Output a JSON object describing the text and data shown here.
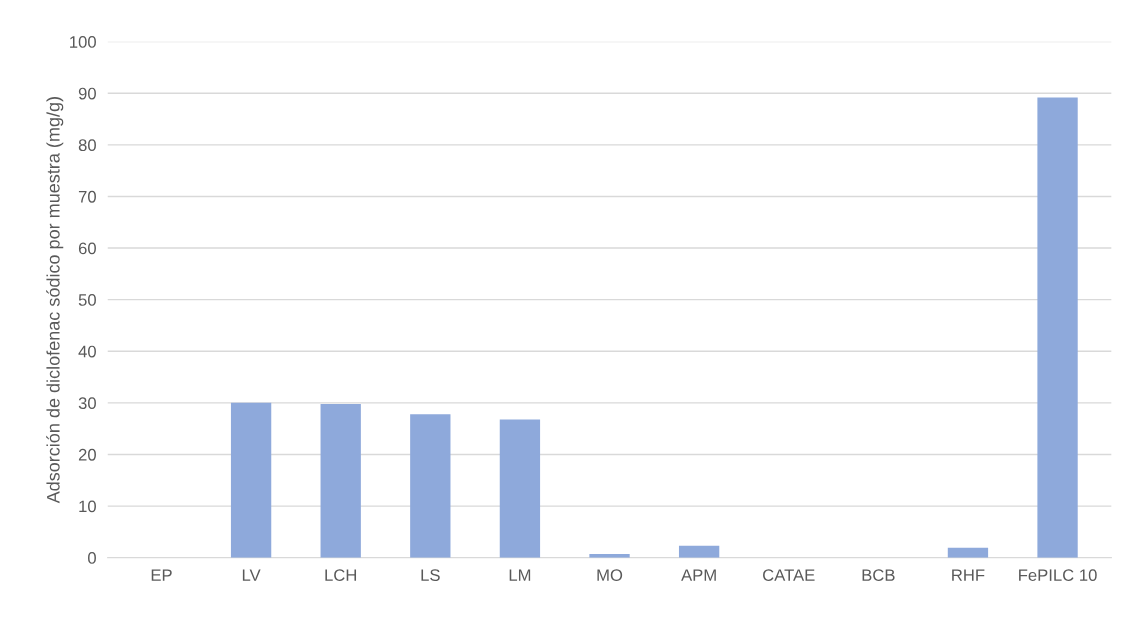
{
  "chart_data": {
    "type": "bar",
    "ylabel": "Adsorción de diclofenac sódico por muestra (mg/g)",
    "categories": [
      "EP",
      "LV",
      "LCH",
      "LS",
      "LM",
      "MO",
      "APM",
      "CATAE",
      "BCB",
      "RHF",
      "FePILC 10"
    ],
    "values": [
      0,
      30.0,
      29.8,
      27.8,
      26.8,
      0.7,
      2.3,
      0,
      0,
      1.9,
      89.2
    ],
    "color": "#8ea9db",
    "ylim": [
      0,
      100
    ],
    "yticks": [
      0,
      10,
      20,
      30,
      40,
      50,
      60,
      70,
      80,
      90,
      100
    ],
    "grid": "y",
    "legend": false
  }
}
